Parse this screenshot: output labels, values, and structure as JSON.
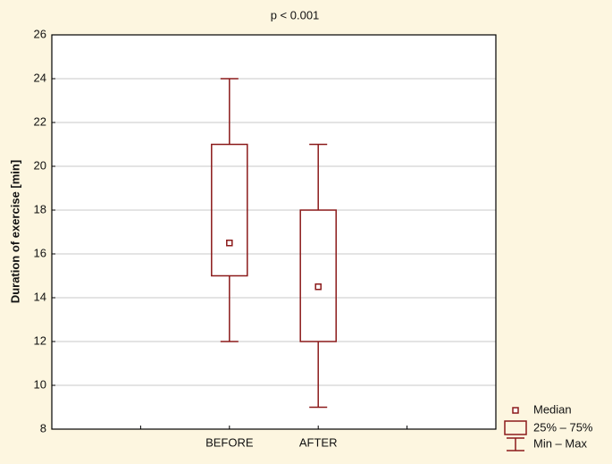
{
  "chart_data": {
    "type": "box",
    "title": "p < 0.001",
    "y_label": "Duration of exercise [min]",
    "categories": [
      "BEFORE",
      "AFTER"
    ],
    "min": [
      12,
      9
    ],
    "q1": [
      15,
      12
    ],
    "median": [
      16.5,
      14.5
    ],
    "q3": [
      21,
      18
    ],
    "max": [
      24,
      21
    ],
    "color": "#8b1a1a",
    "ylim": [
      8,
      26
    ],
    "yticks": [
      8,
      10,
      12,
      14,
      16,
      18,
      20,
      22,
      24,
      26
    ],
    "grid": true,
    "legend": {
      "position": "bottom-right",
      "median": "Median",
      "box": "25% – 75%",
      "whisker": "Min – Max"
    }
  }
}
